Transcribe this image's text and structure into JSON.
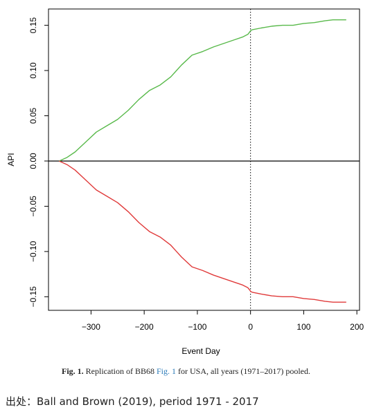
{
  "chart_data": {
    "type": "line",
    "xlabel": "Event Day",
    "ylabel": "API",
    "xlim": [
      -380,
      205
    ],
    "ylim": [
      -0.165,
      0.168
    ],
    "xticks": [
      -300,
      -200,
      -100,
      0,
      100,
      200
    ],
    "xtick_labels": [
      "-300",
      "-200",
      "-100",
      "0",
      "100",
      "200"
    ],
    "yticks": [
      -0.15,
      -0.1,
      -0.05,
      0.0,
      0.05,
      0.1,
      0.15
    ],
    "ytick_labels": [
      "-0.15",
      "-0.10",
      "-0.05",
      "0.00",
      "0.05",
      "0.10",
      "0.15"
    ],
    "hline": 0,
    "vline": 0,
    "grid": false,
    "series": [
      {
        "color": "#58b94a",
        "x": [
          -360,
          -345,
          -330,
          -310,
          -290,
          -270,
          -250,
          -230,
          -210,
          -190,
          -170,
          -150,
          -130,
          -110,
          -90,
          -70,
          -50,
          -30,
          -15,
          -5,
          -1,
          0,
          3,
          20,
          40,
          60,
          80,
          100,
          120,
          140,
          155,
          170,
          180
        ],
        "y": [
          0.0,
          0.004,
          0.01,
          0.021,
          0.032,
          0.039,
          0.046,
          0.056,
          0.068,
          0.078,
          0.084,
          0.093,
          0.106,
          0.117,
          0.121,
          0.126,
          0.13,
          0.134,
          0.137,
          0.14,
          0.143,
          0.144,
          0.145,
          0.147,
          0.149,
          0.15,
          0.15,
          0.152,
          0.153,
          0.155,
          0.156,
          0.156,
          0.156
        ]
      },
      {
        "color": "#e03a3a",
        "x": [
          -360,
          -345,
          -330,
          -310,
          -290,
          -270,
          -250,
          -230,
          -210,
          -190,
          -170,
          -150,
          -130,
          -110,
          -90,
          -70,
          -50,
          -30,
          -15,
          -5,
          -1,
          0,
          3,
          20,
          40,
          60,
          80,
          100,
          120,
          140,
          155,
          170,
          180
        ],
        "y": [
          0.0,
          -0.004,
          -0.01,
          -0.021,
          -0.032,
          -0.039,
          -0.046,
          -0.056,
          -0.068,
          -0.078,
          -0.084,
          -0.093,
          -0.106,
          -0.117,
          -0.121,
          -0.126,
          -0.13,
          -0.134,
          -0.137,
          -0.14,
          -0.143,
          -0.144,
          -0.145,
          -0.147,
          -0.149,
          -0.15,
          -0.15,
          -0.152,
          -0.153,
          -0.155,
          -0.156,
          -0.156,
          -0.156
        ]
      }
    ]
  },
  "caption": {
    "label": "Fig. 1.",
    "text_before": " Replication of BB68 ",
    "link": "Fig. 1",
    "text_after": " for USA, all years (1971–2017) pooled."
  },
  "source_note": "出处：Ball and Brown (2019), period 1971 - 2017"
}
